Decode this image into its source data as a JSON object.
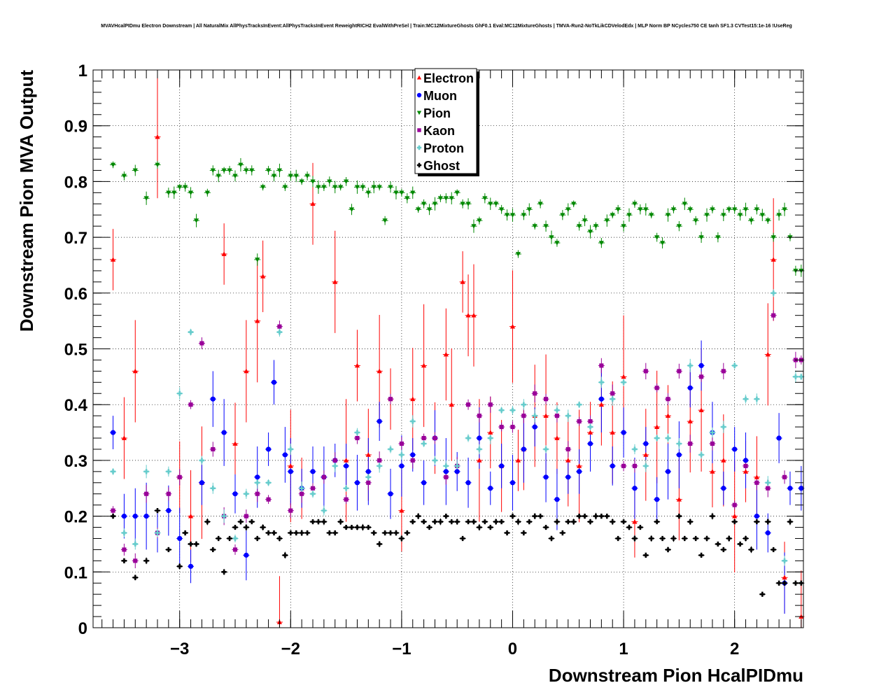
{
  "chart_data": {
    "type": "scatter",
    "title": "MVAVHcalPIDmu Electron Downstream | All NaturalMix AllPhysTracksInEvent:AllPhysTracksInEvent ReweightRICH2 EvalWithPreSel | Train:MC12MixtureGhosts GhF0.1 Eval:MC12MixtureGhosts | TMVA-Run2-NoTkLikCDVelodEdx | MLP Norm BP NCycles750 CE tanh SF1.3 CVTest15:1e-16 !UseReg",
    "xlabel": "Downstream Pion HcalPIDmu",
    "ylabel": "Downstream Pion MVA Output",
    "xlim": [
      -3.78,
      2.62
    ],
    "ylim": [
      0,
      1
    ],
    "x_ticks": [
      "−3",
      "−2",
      "−1",
      "0",
      "1",
      "2"
    ],
    "y_ticks": [
      "0",
      "0.1",
      "0.2",
      "0.3",
      "0.4",
      "0.5",
      "0.6",
      "0.7",
      "0.8",
      "0.9",
      "1"
    ],
    "grid": true,
    "legend_position": "top-center",
    "series": [
      {
        "name": "Electron",
        "color": "#ff0000",
        "marker": "triangle-up",
        "x": [
          -3.6,
          -3.5,
          -3.4,
          -3.2,
          -3.0,
          -2.9,
          -2.8,
          -2.6,
          -2.5,
          -2.4,
          -2.3,
          -2.25,
          -2.1,
          -2.0,
          -1.9,
          -1.8,
          -1.6,
          -1.5,
          -1.4,
          -1.3,
          -1.2,
          -1.1,
          -1.0,
          -0.9,
          -0.8,
          -0.7,
          -0.6,
          -0.55,
          -0.45,
          -0.4,
          -0.35,
          -0.3,
          -0.2,
          -0.1,
          0.0,
          0.05,
          0.1,
          0.2,
          0.3,
          0.4,
          0.5,
          0.6,
          0.7,
          0.8,
          0.9,
          1.0,
          1.1,
          1.2,
          1.3,
          1.4,
          1.5,
          1.6,
          1.7,
          1.8,
          1.9,
          2.0,
          2.1,
          2.2,
          2.3,
          2.35,
          2.45,
          2.6
        ],
        "y": [
          0.66,
          0.34,
          0.46,
          0.88,
          0.27,
          0.2,
          0.26,
          0.67,
          0.33,
          0.46,
          0.55,
          0.63,
          0.01,
          0.29,
          0.25,
          0.76,
          0.62,
          0.3,
          0.47,
          0.31,
          0.46,
          0.41,
          0.21,
          0.41,
          0.47,
          0.34,
          0.49,
          0.4,
          0.62,
          0.56,
          0.56,
          0.3,
          0.35,
          0.29,
          0.54,
          0.3,
          0.32,
          0.38,
          0.38,
          0.34,
          0.3,
          0.29,
          0.35,
          0.4,
          0.35,
          0.45,
          0.19,
          0.31,
          0.36,
          0.38,
          0.23,
          0.37,
          0.39,
          0.28,
          0.3,
          0.2,
          0.28,
          0.27,
          0.49,
          0.66,
          0.09,
          0.02
        ]
      },
      {
        "name": "Muon",
        "color": "#0000ff",
        "marker": "circle",
        "x": [
          -3.6,
          -3.5,
          -3.4,
          -3.3,
          -3.2,
          -3.1,
          -3.0,
          -2.9,
          -2.8,
          -2.7,
          -2.6,
          -2.5,
          -2.4,
          -2.3,
          -2.2,
          -2.15,
          -2.05,
          -2.0,
          -1.9,
          -1.8,
          -1.7,
          -1.6,
          -1.5,
          -1.4,
          -1.3,
          -1.2,
          -1.1,
          -1.0,
          -0.9,
          -0.8,
          -0.7,
          -0.6,
          -0.5,
          -0.4,
          -0.3,
          -0.2,
          -0.1,
          0.0,
          0.1,
          0.2,
          0.3,
          0.4,
          0.5,
          0.6,
          0.7,
          0.8,
          0.9,
          1.0,
          1.1,
          1.2,
          1.3,
          1.4,
          1.5,
          1.6,
          1.7,
          1.8,
          1.9,
          2.0,
          2.1,
          2.2,
          2.3,
          2.4,
          2.45,
          2.5,
          2.6
        ],
        "y": [
          0.35,
          0.2,
          0.2,
          0.2,
          0.17,
          0.21,
          0.16,
          0.11,
          0.26,
          0.41,
          0.35,
          0.24,
          0.13,
          0.27,
          0.32,
          0.44,
          0.31,
          0.28,
          0.25,
          0.28,
          0.27,
          0.3,
          0.29,
          0.26,
          0.28,
          0.37,
          0.24,
          0.29,
          0.31,
          0.26,
          0.34,
          0.28,
          0.28,
          0.26,
          0.34,
          0.25,
          0.29,
          0.26,
          0.32,
          0.36,
          0.27,
          0.23,
          0.27,
          0.28,
          0.33,
          0.41,
          0.29,
          0.35,
          0.25,
          0.33,
          0.23,
          0.28,
          0.31,
          0.43,
          0.47,
          0.35,
          0.25,
          0.32,
          0.3,
          0.2,
          0.17,
          0.34,
          0.08,
          0.25,
          0.25
        ]
      },
      {
        "name": "Pion",
        "color": "#008800",
        "marker": "triangle-down",
        "x": [
          -3.6,
          -3.5,
          -3.4,
          -3.3,
          -3.2,
          -3.1,
          -3.05,
          -3.0,
          -2.95,
          -2.9,
          -2.85,
          -2.75,
          -2.7,
          -2.65,
          -2.6,
          -2.55,
          -2.5,
          -2.45,
          -2.4,
          -2.35,
          -2.3,
          -2.25,
          -2.2,
          -2.15,
          -2.1,
          -2.05,
          -2.0,
          -1.95,
          -1.9,
          -1.85,
          -1.8,
          -1.75,
          -1.7,
          -1.65,
          -1.6,
          -1.55,
          -1.5,
          -1.45,
          -1.4,
          -1.35,
          -1.3,
          -1.25,
          -1.2,
          -1.15,
          -1.1,
          -1.05,
          -1.0,
          -0.95,
          -0.9,
          -0.85,
          -0.8,
          -0.75,
          -0.7,
          -0.65,
          -0.6,
          -0.55,
          -0.5,
          -0.45,
          -0.4,
          -0.35,
          -0.3,
          -0.25,
          -0.2,
          -0.15,
          -0.1,
          -0.05,
          0.0,
          0.05,
          0.1,
          0.15,
          0.2,
          0.25,
          0.3,
          0.35,
          0.4,
          0.45,
          0.5,
          0.55,
          0.6,
          0.65,
          0.7,
          0.75,
          0.8,
          0.85,
          0.9,
          0.95,
          1.0,
          1.05,
          1.1,
          1.15,
          1.2,
          1.25,
          1.3,
          1.35,
          1.4,
          1.45,
          1.5,
          1.55,
          1.6,
          1.65,
          1.7,
          1.75,
          1.8,
          1.85,
          1.9,
          1.95,
          2.0,
          2.05,
          2.1,
          2.15,
          2.2,
          2.25,
          2.3,
          2.35,
          2.4,
          2.45,
          2.5,
          2.55,
          2.6
        ],
        "y": [
          0.83,
          0.81,
          0.82,
          0.77,
          0.83,
          0.78,
          0.78,
          0.79,
          0.79,
          0.78,
          0.73,
          0.78,
          0.82,
          0.81,
          0.82,
          0.82,
          0.81,
          0.83,
          0.82,
          0.82,
          0.66,
          0.79,
          0.82,
          0.81,
          0.82,
          0.79,
          0.81,
          0.81,
          0.8,
          0.81,
          0.8,
          0.79,
          0.79,
          0.8,
          0.79,
          0.79,
          0.8,
          0.75,
          0.79,
          0.79,
          0.78,
          0.79,
          0.79,
          0.73,
          0.79,
          0.78,
          0.78,
          0.77,
          0.78,
          0.75,
          0.76,
          0.75,
          0.76,
          0.77,
          0.77,
          0.77,
          0.78,
          0.76,
          0.76,
          0.72,
          0.73,
          0.77,
          0.76,
          0.76,
          0.75,
          0.74,
          0.74,
          0.67,
          0.74,
          0.75,
          0.72,
          0.76,
          0.72,
          0.7,
          0.69,
          0.74,
          0.75,
          0.76,
          0.72,
          0.73,
          0.71,
          0.72,
          0.69,
          0.73,
          0.74,
          0.75,
          0.72,
          0.74,
          0.76,
          0.75,
          0.75,
          0.74,
          0.7,
          0.69,
          0.74,
          0.75,
          0.72,
          0.76,
          0.75,
          0.73,
          0.7,
          0.74,
          0.75,
          0.7,
          0.74,
          0.75,
          0.75,
          0.74,
          0.75,
          0.73,
          0.75,
          0.74,
          0.73,
          0.7,
          0.74,
          0.75,
          0.7,
          0.64,
          0.64
        ]
      },
      {
        "name": "Kaon",
        "color": "#990099",
        "marker": "square",
        "x": [
          -3.6,
          -3.5,
          -3.4,
          -3.3,
          -3.2,
          -3.1,
          -3.0,
          -2.9,
          -2.8,
          -2.7,
          -2.6,
          -2.5,
          -2.4,
          -2.3,
          -2.2,
          -2.1,
          -2.0,
          -1.9,
          -1.8,
          -1.7,
          -1.6,
          -1.5,
          -1.4,
          -1.3,
          -1.2,
          -1.1,
          -1.0,
          -0.9,
          -0.8,
          -0.7,
          -0.6,
          -0.5,
          -0.4,
          -0.3,
          -0.2,
          -0.1,
          0.0,
          0.1,
          0.2,
          0.3,
          0.4,
          0.5,
          0.6,
          0.7,
          0.8,
          0.9,
          1.0,
          1.1,
          1.2,
          1.3,
          1.4,
          1.5,
          1.6,
          1.7,
          1.8,
          1.9,
          2.0,
          2.1,
          2.2,
          2.3,
          2.35,
          2.45,
          2.55,
          2.6
        ],
        "y": [
          0.21,
          0.14,
          0.12,
          0.24,
          0.17,
          0.24,
          0.27,
          0.4,
          0.51,
          0.32,
          0.2,
          0.14,
          0.2,
          0.24,
          0.23,
          0.54,
          0.21,
          0.24,
          0.25,
          0.27,
          0.3,
          0.23,
          0.34,
          0.26,
          0.3,
          0.41,
          0.33,
          0.3,
          0.34,
          0.34,
          0.27,
          0.29,
          0.4,
          0.38,
          0.4,
          0.36,
          0.36,
          0.38,
          0.42,
          0.41,
          0.38,
          0.32,
          0.37,
          0.37,
          0.47,
          0.42,
          0.29,
          0.29,
          0.46,
          0.43,
          0.41,
          0.46,
          0.33,
          0.45,
          0.33,
          0.46,
          0.22,
          0.29,
          0.26,
          0.25,
          0.56,
          0.27,
          0.48,
          0.48
        ]
      },
      {
        "name": "Proton",
        "color": "#66cccc",
        "marker": "cross",
        "x": [
          -3.6,
          -3.5,
          -3.4,
          -3.3,
          -3.2,
          -3.1,
          -3.0,
          -2.9,
          -2.8,
          -2.7,
          -2.6,
          -2.5,
          -2.4,
          -2.3,
          -2.2,
          -2.1,
          -2.0,
          -1.9,
          -1.8,
          -1.7,
          -1.6,
          -1.5,
          -1.4,
          -1.3,
          -1.2,
          -1.1,
          -1.0,
          -0.9,
          -0.8,
          -0.7,
          -0.6,
          -0.5,
          -0.4,
          -0.3,
          -0.2,
          -0.1,
          0.0,
          0.1,
          0.2,
          0.3,
          0.4,
          0.5,
          0.6,
          0.7,
          0.8,
          0.9,
          1.0,
          1.1,
          1.2,
          1.3,
          1.4,
          1.5,
          1.6,
          1.7,
          1.8,
          1.9,
          2.0,
          2.1,
          2.2,
          2.3,
          2.35,
          2.45,
          2.55,
          2.6
        ],
        "y": [
          0.28,
          0.17,
          0.15,
          0.28,
          0.17,
          0.28,
          0.42,
          0.53,
          0.3,
          0.25,
          0.2,
          0.16,
          0.24,
          0.26,
          0.26,
          0.53,
          0.32,
          0.25,
          0.24,
          0.21,
          0.29,
          0.25,
          0.35,
          0.27,
          0.29,
          0.32,
          0.31,
          0.37,
          0.33,
          0.3,
          0.29,
          0.29,
          0.34,
          0.32,
          0.34,
          0.39,
          0.39,
          0.4,
          0.38,
          0.32,
          0.39,
          0.38,
          0.4,
          0.36,
          0.44,
          0.41,
          0.44,
          0.32,
          0.29,
          0.34,
          0.34,
          0.33,
          0.47,
          0.31,
          0.35,
          0.36,
          0.47,
          0.41,
          0.41,
          0.26,
          0.6,
          0.12,
          0.45,
          0.45
        ]
      },
      {
        "name": "Ghost",
        "color": "#000000",
        "marker": "cross",
        "x": [
          -3.6,
          -3.5,
          -3.4,
          -3.3,
          -3.2,
          -3.1,
          -3.0,
          -2.95,
          -2.9,
          -2.85,
          -2.75,
          -2.7,
          -2.65,
          -2.6,
          -2.55,
          -2.5,
          -2.45,
          -2.4,
          -2.35,
          -2.3,
          -2.25,
          -2.2,
          -2.15,
          -2.1,
          -2.05,
          -2.0,
          -1.95,
          -1.9,
          -1.85,
          -1.8,
          -1.75,
          -1.7,
          -1.65,
          -1.6,
          -1.55,
          -1.5,
          -1.45,
          -1.4,
          -1.35,
          -1.3,
          -1.25,
          -1.2,
          -1.15,
          -1.1,
          -1.05,
          -1.0,
          -0.95,
          -0.9,
          -0.85,
          -0.8,
          -0.75,
          -0.7,
          -0.65,
          -0.6,
          -0.55,
          -0.5,
          -0.45,
          -0.4,
          -0.35,
          -0.3,
          -0.25,
          -0.2,
          -0.15,
          -0.1,
          -0.05,
          0.0,
          0.05,
          0.1,
          0.15,
          0.2,
          0.25,
          0.3,
          0.35,
          0.4,
          0.45,
          0.5,
          0.55,
          0.6,
          0.65,
          0.7,
          0.75,
          0.8,
          0.85,
          0.9,
          0.95,
          1.0,
          1.05,
          1.1,
          1.15,
          1.2,
          1.25,
          1.3,
          1.35,
          1.4,
          1.45,
          1.5,
          1.55,
          1.6,
          1.65,
          1.7,
          1.75,
          1.8,
          1.85,
          1.9,
          1.95,
          2.0,
          2.05,
          2.1,
          2.15,
          2.2,
          2.25,
          2.3,
          2.35,
          2.4,
          2.45,
          2.5,
          2.55,
          2.6
        ],
        "y": [
          0.2,
          0.12,
          0.09,
          0.12,
          0.21,
          0.14,
          0.11,
          0.17,
          0.15,
          0.15,
          0.19,
          0.14,
          0.16,
          0.1,
          0.16,
          0.18,
          0.19,
          0.18,
          0.19,
          0.16,
          0.18,
          0.17,
          0.17,
          0.16,
          0.13,
          0.17,
          0.17,
          0.17,
          0.17,
          0.19,
          0.19,
          0.19,
          0.17,
          0.17,
          0.19,
          0.18,
          0.18,
          0.18,
          0.18,
          0.18,
          0.17,
          0.15,
          0.17,
          0.17,
          0.17,
          0.16,
          0.17,
          0.19,
          0.2,
          0.19,
          0.18,
          0.19,
          0.19,
          0.2,
          0.19,
          0.19,
          0.16,
          0.19,
          0.19,
          0.18,
          0.19,
          0.18,
          0.19,
          0.19,
          0.17,
          0.2,
          0.19,
          0.17,
          0.19,
          0.2,
          0.2,
          0.18,
          0.16,
          0.19,
          0.17,
          0.19,
          0.19,
          0.2,
          0.2,
          0.19,
          0.2,
          0.2,
          0.2,
          0.19,
          0.16,
          0.19,
          0.18,
          0.16,
          0.18,
          0.13,
          0.16,
          0.19,
          0.16,
          0.14,
          0.16,
          0.2,
          0.16,
          0.19,
          0.16,
          0.13,
          0.16,
          0.2,
          0.15,
          0.14,
          0.16,
          0.19,
          0.15,
          0.16,
          0.14,
          0.19,
          0.06,
          0.19,
          0.14,
          0.08,
          0.08,
          0.19,
          0.08,
          0.08
        ]
      }
    ]
  }
}
